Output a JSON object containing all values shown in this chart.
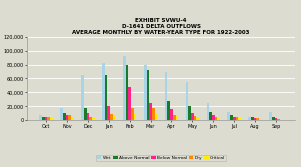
{
  "title1": "EXHIBIT SVWU-4",
  "title2": "D-1641 DELTA OUTFLOWS",
  "title3": "AVERAGE MONTHLY BY WATER-YEAR TYPE FOR 1922-2003",
  "months": [
    "Oct",
    "Nov",
    "Dec",
    "Jan",
    "Feb",
    "Mar",
    "Apr",
    "May",
    "Jun",
    "Jul",
    "Aug",
    "Sep"
  ],
  "series": {
    "Wet": [
      8000,
      17000,
      65000,
      82000,
      93000,
      80000,
      70000,
      55000,
      25000,
      12000,
      5000,
      12000
    ],
    "Above Normal": [
      5000,
      10000,
      17000,
      65000,
      80000,
      72000,
      28000,
      20000,
      12000,
      8000,
      4000,
      4000
    ],
    "Below Normal": [
      4500,
      8000,
      10000,
      20000,
      48000,
      25000,
      16000,
      10000,
      8000,
      5000,
      3500,
      3000
    ],
    "Dry": [
      4000,
      7000,
      5000,
      9000,
      17000,
      17000,
      8000,
      6000,
      5000,
      4000,
      3000,
      2500
    ],
    "Critical": [
      3500,
      5000,
      4000,
      7000,
      10000,
      10000,
      6000,
      4000,
      3500,
      3000,
      2500,
      2000
    ]
  },
  "colors": {
    "Wet": "#a8d4e8",
    "Above Normal": "#1a7a2a",
    "Below Normal": "#ff2288",
    "Dry": "#ff8800",
    "Critical": "#ffee00"
  },
  "ylim": [
    0,
    120000
  ],
  "yticks": [
    0,
    20000,
    40000,
    60000,
    80000,
    100000,
    120000
  ],
  "background_color": "#dcdcd0",
  "plot_bg": "#dcdcd0",
  "grid_color": "#ffffff"
}
